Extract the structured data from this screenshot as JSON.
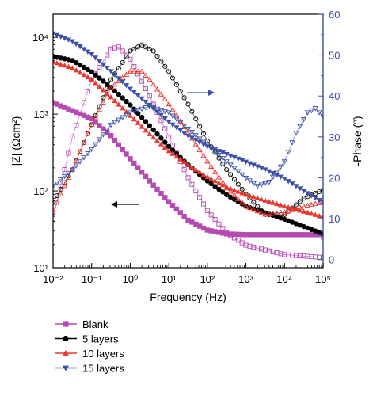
{
  "chart_data": {
    "type": "scatter",
    "x_axis": {
      "label": "Frequency (Hz)",
      "scale": "log",
      "range": [
        0.01,
        100000
      ],
      "tick_labels": [
        "10⁻²",
        "10⁻¹",
        "10⁰",
        "10¹",
        "10²",
        "10³",
        "10⁴",
        "10⁵"
      ]
    },
    "y_left": {
      "label": "|Z| (Ωcm²)",
      "scale": "log",
      "range": [
        10,
        20000
      ],
      "tick_labels": [
        "10¹",
        "10²",
        "10³",
        "10⁴"
      ]
    },
    "y_right": {
      "label": "-Phase (°)",
      "scale": "linear",
      "range": [
        -2,
        60
      ],
      "tick_labels": [
        "0",
        "10",
        "20",
        "30",
        "40",
        "50",
        "60"
      ]
    },
    "legend": {
      "placement": "bottom-left"
    },
    "series": [
      {
        "name": "Blank",
        "color": "#b44bb0",
        "marker": "square",
        "impedance_log_anchors": [
          [
            -2,
            3.15
          ],
          [
            -1,
            2.94
          ],
          [
            -0.5,
            2.72
          ],
          [
            0,
            2.42
          ],
          [
            0.5,
            2.13
          ],
          [
            1,
            1.86
          ],
          [
            1.5,
            1.62
          ],
          [
            2,
            1.49
          ],
          [
            2.5,
            1.44
          ],
          [
            3,
            1.43
          ],
          [
            5,
            1.43
          ]
        ],
        "phase_log_anchors": [
          [
            -2,
            10
          ],
          [
            -1.5,
            30
          ],
          [
            -1,
            44
          ],
          [
            -0.5,
            51.5
          ],
          [
            -0.3,
            52
          ],
          [
            0,
            49
          ],
          [
            0.5,
            40
          ],
          [
            1,
            30
          ],
          [
            1.5,
            20
          ],
          [
            2,
            12
          ],
          [
            2.5,
            6.5
          ],
          [
            3,
            3.5
          ],
          [
            4,
            1.2
          ],
          [
            5,
            0.5
          ]
        ]
      },
      {
        "name": "5 layers",
        "color": "#000000",
        "marker": "circle",
        "impedance_log_anchors": [
          [
            -2,
            3.75
          ],
          [
            -1.5,
            3.7
          ],
          [
            -1,
            3.55
          ],
          [
            -0.5,
            3.35
          ],
          [
            0,
            3.12
          ],
          [
            0.5,
            2.85
          ],
          [
            1,
            2.58
          ],
          [
            1.5,
            2.34
          ],
          [
            2,
            2.13
          ],
          [
            2.5,
            1.95
          ],
          [
            3,
            1.8
          ],
          [
            4,
            1.63
          ],
          [
            5,
            1.44
          ]
        ],
        "phase_log_anchors": [
          [
            -2,
            14
          ],
          [
            -1.5,
            22
          ],
          [
            -1,
            33
          ],
          [
            -0.5,
            44
          ],
          [
            0,
            51
          ],
          [
            0.3,
            52.5
          ],
          [
            0.6,
            51
          ],
          [
            1,
            46
          ],
          [
            1.5,
            38
          ],
          [
            2,
            29
          ],
          [
            2.5,
            22
          ],
          [
            3,
            16
          ],
          [
            3.5,
            11
          ],
          [
            4,
            11
          ],
          [
            4.5,
            15
          ],
          [
            5,
            17
          ]
        ]
      },
      {
        "name": "10 layers",
        "color": "#e8382f",
        "marker": "triangle-up",
        "impedance_log_anchors": [
          [
            -2,
            3.68
          ],
          [
            -1.5,
            3.6
          ],
          [
            -1,
            3.45
          ],
          [
            -0.5,
            3.22
          ],
          [
            0,
            2.98
          ],
          [
            0.5,
            2.74
          ],
          [
            1,
            2.52
          ],
          [
            1.5,
            2.34
          ],
          [
            2,
            2.18
          ],
          [
            2.5,
            2.05
          ],
          [
            3,
            1.95
          ],
          [
            4,
            1.8
          ],
          [
            5,
            1.66
          ]
        ],
        "phase_log_anchors": [
          [
            -2,
            12
          ],
          [
            -1.5,
            22
          ],
          [
            -1,
            33
          ],
          [
            -0.5,
            42
          ],
          [
            0,
            46
          ],
          [
            0.3,
            46
          ],
          [
            0.5,
            44
          ],
          [
            1,
            38
          ],
          [
            1.5,
            31
          ],
          [
            2,
            24
          ],
          [
            2.5,
            17.5
          ],
          [
            3,
            13
          ],
          [
            3.5,
            11
          ],
          [
            4,
            11.5
          ],
          [
            4.5,
            13
          ],
          [
            5,
            14
          ]
        ]
      },
      {
        "name": "15 layers",
        "color": "#3c4fa8",
        "marker": "triangle-down",
        "impedance_log_anchors": [
          [
            -2,
            4.05
          ],
          [
            -1.5,
            3.95
          ],
          [
            -1,
            3.78
          ],
          [
            -0.5,
            3.56
          ],
          [
            0,
            3.33
          ],
          [
            0.5,
            3.12
          ],
          [
            1,
            2.9
          ],
          [
            1.5,
            2.72
          ],
          [
            2,
            2.58
          ],
          [
            2.5,
            2.48
          ],
          [
            3,
            2.38
          ],
          [
            3.5,
            2.28
          ],
          [
            4,
            2.16
          ],
          [
            4.5,
            2.0
          ],
          [
            5,
            1.85
          ]
        ],
        "phase_log_anchors": [
          [
            -2,
            18
          ],
          [
            -1.5,
            22
          ],
          [
            -1,
            27
          ],
          [
            -0.5,
            33
          ],
          [
            0,
            36
          ],
          [
            0.5,
            37.5
          ],
          [
            1,
            36
          ],
          [
            1.5,
            32
          ],
          [
            2,
            28
          ],
          [
            2.5,
            24
          ],
          [
            3,
            20
          ],
          [
            3.3,
            18
          ],
          [
            3.6,
            19
          ],
          [
            4,
            24
          ],
          [
            4.3,
            31
          ],
          [
            4.6,
            36
          ],
          [
            4.8,
            37
          ],
          [
            5,
            35
          ]
        ]
      }
    ],
    "annotations": [
      {
        "type": "arrow",
        "direction": "left",
        "color": "#000000",
        "meaning": "points to left axis (impedance)"
      },
      {
        "type": "arrow",
        "direction": "right",
        "color": "#3c4fa8",
        "meaning": "points to right axis (phase)"
      }
    ]
  }
}
